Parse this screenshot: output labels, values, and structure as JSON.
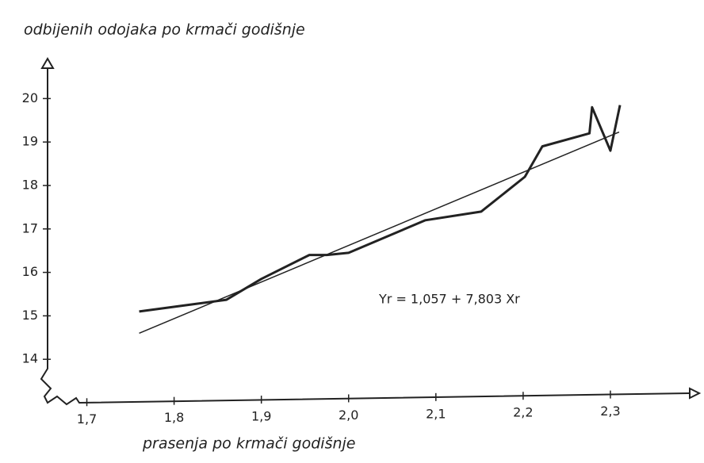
{
  "chart_data": {
    "type": "line",
    "title": "odbijenih odojaka po krmači godišnje",
    "x_label": "prasenja po krmači godišnje",
    "annotation": "Yr = 1,057 + 7,803 Xr",
    "xlim": [
      1.655,
      2.4
    ],
    "ylim": [
      13,
      20.9
    ],
    "xticks": [
      {
        "value": 1.7,
        "label": "1,7"
      },
      {
        "value": 1.8,
        "label": "1,8"
      },
      {
        "value": 1.9,
        "label": "1,9"
      },
      {
        "value": 2.0,
        "label": "2,0"
      },
      {
        "value": 2.1,
        "label": "2,1"
      },
      {
        "value": 2.2,
        "label": "2,2"
      },
      {
        "value": 2.3,
        "label": "2,3"
      }
    ],
    "yticks": [
      14,
      15,
      16,
      17,
      18,
      19,
      20
    ],
    "series": [
      {
        "color": "#222",
        "width": 3,
        "x": [
          1.76,
          1.86,
          1.9,
          1.955,
          1.975,
          2.0,
          2.088,
          2.152,
          2.202,
          2.222,
          2.276,
          2.279,
          2.3,
          2.311
        ],
        "values": [
          15.1,
          15.37,
          15.85,
          16.4,
          16.4,
          16.45,
          17.2,
          17.4,
          18.2,
          18.9,
          19.2,
          19.8,
          18.8,
          19.85
        ]
      },
      {
        "color": "#222",
        "width": 1.5,
        "x": [
          1.76,
          2.31
        ],
        "values": [
          14.6,
          19.23
        ]
      }
    ]
  }
}
